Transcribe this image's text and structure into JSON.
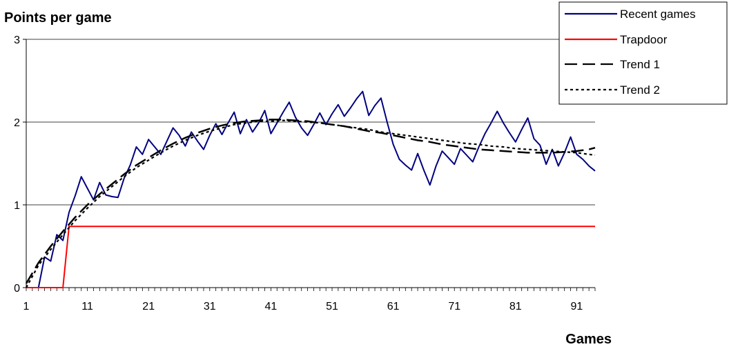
{
  "chart_data": {
    "type": "line",
    "title": "Points per game",
    "ylabel": "",
    "xlabel": "Games",
    "xlim": [
      1,
      94
    ],
    "ylim": [
      0,
      3
    ],
    "y_ticks": [
      "0",
      "1",
      "2",
      "3"
    ],
    "x_ticks": [
      "1",
      "11",
      "21",
      "31",
      "41",
      "51",
      "61",
      "71",
      "81",
      "91"
    ],
    "grid": "horizontal",
    "legend_position": "top-right",
    "colors": {
      "recent": "#000080",
      "trapdoor": "#ff0000",
      "trend": "#000000"
    },
    "series": [
      {
        "name": "Recent games",
        "style": "solid",
        "color": "#000080",
        "x": [
          1,
          2,
          3,
          4,
          5,
          6,
          7,
          8,
          9,
          10,
          11,
          12,
          13,
          14,
          15,
          16,
          17,
          18,
          19,
          20,
          21,
          22,
          23,
          24,
          25,
          26,
          27,
          28,
          29,
          30,
          31,
          32,
          33,
          34,
          35,
          36,
          37,
          38,
          39,
          40,
          41,
          42,
          43,
          44,
          45,
          46,
          47,
          48,
          49,
          50,
          51,
          52,
          53,
          54,
          55,
          56,
          57,
          58,
          59,
          60,
          61,
          62,
          63,
          64,
          65,
          66,
          67,
          68,
          69,
          70,
          71,
          72,
          73,
          74,
          75,
          76,
          77,
          78,
          79,
          80,
          81,
          82,
          83,
          84,
          85,
          86,
          87,
          88,
          89,
          90,
          91,
          92,
          93,
          94
        ],
        "y": [
          0,
          0,
          0,
          0.37,
          0.32,
          0.64,
          0.57,
          0.91,
          1.11,
          1.34,
          1.2,
          1.06,
          1.27,
          1.12,
          1.1,
          1.09,
          1.32,
          1.48,
          1.7,
          1.61,
          1.79,
          1.7,
          1.61,
          1.77,
          1.93,
          1.84,
          1.71,
          1.88,
          1.77,
          1.67,
          1.84,
          1.98,
          1.85,
          1.99,
          2.12,
          1.86,
          2.03,
          1.88,
          1.99,
          2.14,
          1.86,
          1.99,
          2.12,
          2.24,
          2.06,
          1.93,
          1.84,
          1.97,
          2.11,
          1.97,
          2.1,
          2.21,
          2.07,
          2.17,
          2.28,
          2.37,
          2.08,
          2.2,
          2.29,
          2.0,
          1.73,
          1.55,
          1.48,
          1.42,
          1.62,
          1.42,
          1.24,
          1.47,
          1.65,
          1.57,
          1.49,
          1.68,
          1.6,
          1.52,
          1.7,
          1.86,
          1.99,
          2.13,
          1.99,
          1.87,
          1.76,
          1.91,
          2.05,
          1.8,
          1.72,
          1.49,
          1.67,
          1.47,
          1.63,
          1.82,
          1.61,
          1.55,
          1.47,
          1.41
        ]
      },
      {
        "name": "Trapdoor",
        "style": "solid",
        "color": "#ff0000",
        "x": [
          1,
          7,
          8,
          94
        ],
        "y": [
          0,
          0,
          0.74,
          0.74
        ]
      },
      {
        "name": "Trend 1",
        "style": "long-dash",
        "color": "#000000",
        "x": [
          1,
          3,
          5,
          7,
          9,
          11,
          13,
          15,
          17,
          19,
          21,
          23,
          25,
          27,
          29,
          31,
          33,
          35,
          37,
          39,
          41,
          43,
          45,
          47,
          49,
          51,
          53,
          55,
          57,
          59,
          61,
          63,
          65,
          67,
          69,
          71,
          73,
          75,
          77,
          79,
          81,
          83,
          85,
          87,
          89,
          91,
          93,
          94
        ],
        "y": [
          0.05,
          0.3,
          0.5,
          0.68,
          0.85,
          1.0,
          1.13,
          1.25,
          1.37,
          1.48,
          1.57,
          1.66,
          1.74,
          1.81,
          1.87,
          1.92,
          1.96,
          1.99,
          2.01,
          2.02,
          2.03,
          2.03,
          2.02,
          2.01,
          1.99,
          1.97,
          1.95,
          1.92,
          1.89,
          1.87,
          1.84,
          1.81,
          1.78,
          1.76,
          1.73,
          1.71,
          1.69,
          1.67,
          1.66,
          1.65,
          1.64,
          1.63,
          1.63,
          1.63,
          1.64,
          1.65,
          1.67,
          1.69
        ]
      },
      {
        "name": "Trend 2",
        "style": "dotted",
        "color": "#000000",
        "x": [
          1,
          3,
          5,
          7,
          9,
          11,
          13,
          15,
          17,
          19,
          21,
          23,
          25,
          27,
          29,
          31,
          33,
          35,
          37,
          39,
          41,
          43,
          45,
          47,
          49,
          51,
          53,
          55,
          57,
          59,
          61,
          63,
          65,
          67,
          69,
          71,
          73,
          75,
          77,
          79,
          81,
          83,
          85,
          87,
          89,
          91,
          93,
          94
        ],
        "y": [
          0.0,
          0.27,
          0.46,
          0.64,
          0.81,
          0.96,
          1.1,
          1.22,
          1.34,
          1.45,
          1.54,
          1.63,
          1.71,
          1.78,
          1.84,
          1.89,
          1.93,
          1.97,
          1.99,
          2.01,
          2.01,
          2.02,
          2.01,
          2.0,
          1.99,
          1.97,
          1.95,
          1.93,
          1.91,
          1.88,
          1.86,
          1.84,
          1.82,
          1.8,
          1.78,
          1.76,
          1.74,
          1.73,
          1.71,
          1.7,
          1.68,
          1.67,
          1.66,
          1.65,
          1.64,
          1.63,
          1.61,
          1.6
        ]
      }
    ]
  }
}
